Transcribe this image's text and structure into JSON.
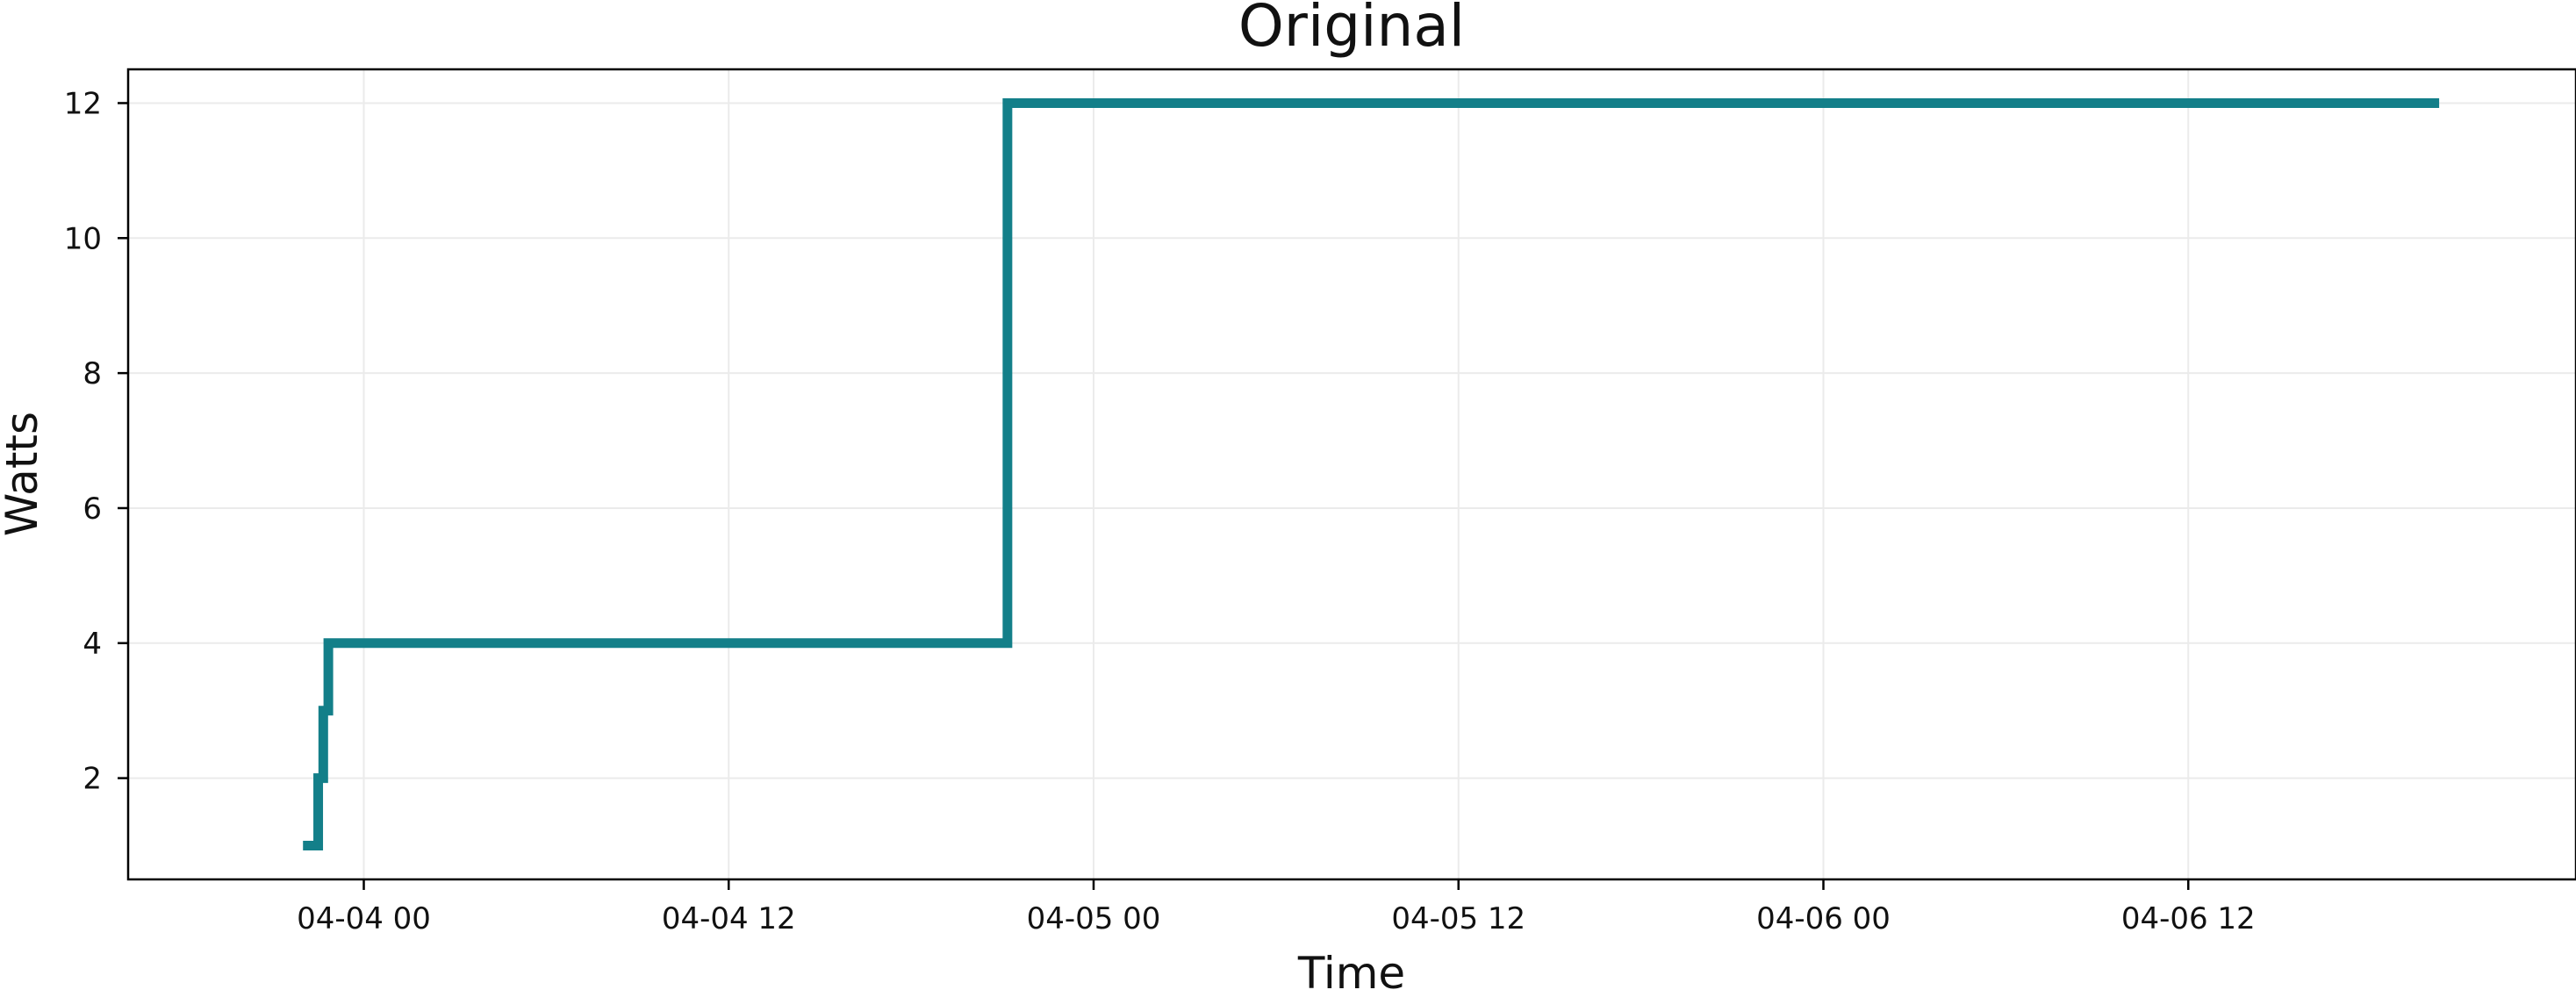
{
  "chart_data": {
    "type": "line",
    "title": "Original",
    "xlabel": "Time",
    "ylabel": "Watts",
    "x_ticks": [
      "04-04 00",
      "04-04 12",
      "04-05 00",
      "04-05 12",
      "04-06 00",
      "04-06 12"
    ],
    "y_ticks": [
      "2",
      "4",
      "6",
      "8",
      "10",
      "12"
    ],
    "ylim": [
      0.5,
      12.5
    ],
    "xlim": [
      "2024-04-03 16:15",
      "2024-04-07 00:45"
    ],
    "grid": true,
    "line_color": "#137f89",
    "series": [
      {
        "step": "post",
        "points": [
          {
            "x": "2024-04-03 22:00",
            "y": 1
          },
          {
            "x": "2024-04-03 22:30",
            "y": 2
          },
          {
            "x": "2024-04-03 22:40",
            "y": 3
          },
          {
            "x": "2024-04-03 22:50",
            "y": 4
          },
          {
            "x": "2024-04-04 21:10",
            "y": 12
          },
          {
            "x": "2024-04-06 20:15",
            "y": 12
          }
        ]
      }
    ]
  }
}
